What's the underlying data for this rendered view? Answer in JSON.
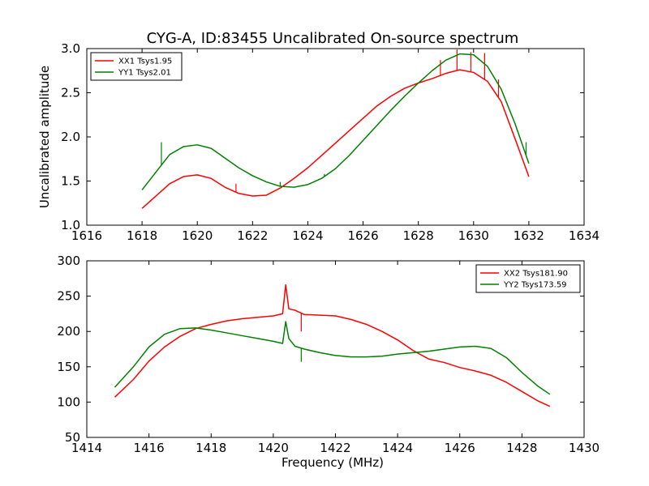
{
  "figure": {
    "title": "CYG-A, ID:83455 Uncalibrated On-source spectrum",
    "xlabel": "Frequency (MHz)",
    "ylabel": "Uncalibrated amplitude"
  },
  "chart_data": [
    {
      "type": "line",
      "title": "CYG-A, ID:83455 Uncalibrated On-source spectrum",
      "xlabel": "",
      "ylabel": "Uncalibrated amplitude",
      "xlim": [
        1616,
        1634
      ],
      "ylim": [
        1.0,
        3.0
      ],
      "xticks": [
        "1616",
        "1618",
        "1620",
        "1622",
        "1624",
        "1626",
        "1628",
        "1630",
        "1632",
        "1634"
      ],
      "yticks": [
        "1.0",
        "1.5",
        "2.0",
        "2.5",
        "3.0"
      ],
      "legend": "top-left",
      "grid": false,
      "series": [
        {
          "name": "XX1 Tsys1.95",
          "color": "#ff0000",
          "x": [
            1618,
            1618.5,
            1619,
            1619.5,
            1620,
            1620.5,
            1621,
            1621.5,
            1622,
            1622.5,
            1623,
            1623.5,
            1624,
            1624.5,
            1625,
            1625.5,
            1626,
            1626.5,
            1627,
            1627.5,
            1628,
            1628.5,
            1629,
            1629.5,
            1630,
            1630.5,
            1631,
            1631.5,
            1632
          ],
          "y": [
            1.19,
            1.33,
            1.47,
            1.55,
            1.57,
            1.53,
            1.43,
            1.36,
            1.33,
            1.34,
            1.42,
            1.53,
            1.65,
            1.79,
            1.93,
            2.07,
            2.21,
            2.35,
            2.46,
            2.55,
            2.61,
            2.66,
            2.72,
            2.76,
            2.73,
            2.63,
            2.4,
            1.98,
            1.55
          ],
          "spikes": [
            {
              "x": 1621.4,
              "y": 1.47
            },
            {
              "x": 1628.8,
              "y": 2.87
            },
            {
              "x": 1629.4,
              "y": 2.99
            },
            {
              "x": 1629.9,
              "y": 2.96
            },
            {
              "x": 1630.4,
              "y": 2.95
            },
            {
              "x": 1630.9,
              "y": 2.65
            }
          ]
        },
        {
          "name": "YY1 Tsys2.01",
          "color": "#008000",
          "x": [
            1618,
            1618.5,
            1619,
            1619.5,
            1620,
            1620.5,
            1621,
            1621.5,
            1622,
            1622.5,
            1623,
            1623.5,
            1624,
            1624.5,
            1625,
            1625.5,
            1626,
            1626.5,
            1627,
            1627.5,
            1628,
            1628.5,
            1629,
            1629.5,
            1630,
            1630.5,
            1631,
            1631.5,
            1632
          ],
          "y": [
            1.4,
            1.6,
            1.8,
            1.89,
            1.91,
            1.87,
            1.76,
            1.65,
            1.56,
            1.49,
            1.44,
            1.43,
            1.46,
            1.53,
            1.64,
            1.79,
            1.96,
            2.13,
            2.3,
            2.46,
            2.61,
            2.75,
            2.87,
            2.94,
            2.93,
            2.8,
            2.54,
            2.15,
            1.7
          ],
          "spikes": [
            {
              "x": 1618.7,
              "y": 1.94
            },
            {
              "x": 1623.0,
              "y": 1.49
            },
            {
              "x": 1624.6,
              "y": 1.58
            },
            {
              "x": 1631.9,
              "y": 1.94
            }
          ]
        }
      ]
    },
    {
      "type": "line",
      "title": "",
      "xlabel": "Frequency (MHz)",
      "ylabel": "",
      "xlim": [
        1414,
        1430
      ],
      "ylim": [
        50,
        300
      ],
      "xticks": [
        "1414",
        "1416",
        "1418",
        "1420",
        "1422",
        "1424",
        "1426",
        "1428",
        "1430"
      ],
      "yticks": [
        "50",
        "100",
        "150",
        "200",
        "250",
        "300"
      ],
      "legend": "top-right",
      "grid": false,
      "series": [
        {
          "name": "XX2 Tsys181.90",
          "color": "#ff0000",
          "x": [
            1414.9,
            1415.5,
            1416,
            1416.5,
            1417,
            1417.5,
            1418,
            1418.5,
            1419,
            1419.5,
            1420,
            1420.3,
            1420.4,
            1420.5,
            1420.7,
            1421,
            1421.5,
            1422,
            1422.5,
            1423,
            1423.5,
            1424,
            1424.5,
            1425,
            1425.5,
            1426,
            1426.5,
            1427,
            1427.5,
            1428,
            1428.5,
            1428.9
          ],
          "y": [
            107,
            132,
            158,
            178,
            193,
            204,
            210,
            215,
            218,
            220,
            222,
            225,
            266,
            232,
            230,
            224,
            223,
            222,
            217,
            210,
            200,
            188,
            173,
            161,
            156,
            149,
            144,
            138,
            128,
            115,
            102,
            94
          ],
          "spikes": [
            {
              "x": 1420.9,
              "y": 200
            }
          ]
        },
        {
          "name": "YY2 Tsys173.59",
          "color": "#008000",
          "x": [
            1414.9,
            1415.5,
            1416,
            1416.5,
            1417,
            1417.5,
            1418,
            1418.5,
            1419,
            1419.5,
            1420,
            1420.3,
            1420.4,
            1420.5,
            1420.7,
            1421,
            1421.5,
            1422,
            1422.5,
            1423,
            1423.5,
            1424,
            1424.5,
            1425,
            1425.5,
            1426,
            1426.5,
            1427,
            1427.5,
            1428,
            1428.5,
            1428.9
          ],
          "y": [
            121,
            150,
            178,
            196,
            204,
            205,
            202,
            198,
            194,
            190,
            186,
            183,
            214,
            190,
            179,
            175,
            170,
            166,
            164,
            164,
            165,
            168,
            170,
            172,
            175,
            178,
            179,
            176,
            163,
            142,
            123,
            111
          ],
          "spikes": [
            {
              "x": 1420.9,
              "y": 157
            }
          ]
        }
      ]
    }
  ]
}
